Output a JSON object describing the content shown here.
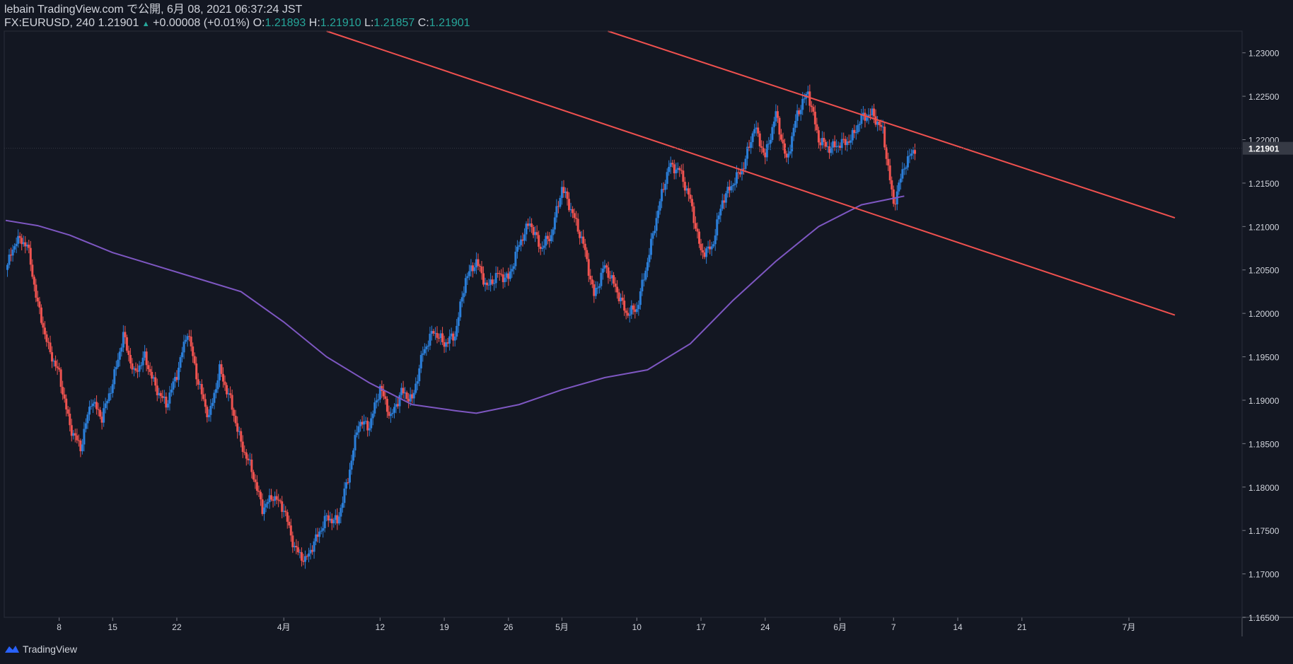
{
  "header": {
    "line1": "lebain TradingView.com で公開, 6月 08, 2021 06:37:24 JST",
    "symbol": "FX:EURUSD, 240",
    "last": "1.21901",
    "change": "+0.00008 (+0.01%)",
    "o_label": "O:",
    "o_val": "1.21893",
    "h_label": "H:",
    "h_val": "1.21910",
    "l_label": "L:",
    "l_val": "1.21857",
    "c_label": "C:",
    "c_val": "1.21901"
  },
  "footer": {
    "brand": "TradingView",
    "logo_icon": "tradingview-logo-icon"
  },
  "colors": {
    "background": "#131722",
    "up": "#2b7ed8",
    "down": "#ef5350",
    "ma": "#7e57c2",
    "channel": "#f0514f",
    "axis_text": "#d1d4dc",
    "last_price_bg": "#363a45"
  },
  "chart_data": {
    "type": "candlestick",
    "symbol": "FX:EURUSD",
    "timeframe": "240",
    "ylim": [
      1.165,
      1.2325
    ],
    "y_ticks": [
      "1.23000",
      "1.22500",
      "1.22000",
      "1.21500",
      "1.21000",
      "1.20500",
      "1.20000",
      "1.19500",
      "1.19000",
      "1.18500",
      "1.18000",
      "1.17500",
      "1.17000",
      "1.16500"
    ],
    "last_price": "1.21901",
    "x_ticks": [
      "8",
      "15",
      "22",
      "4月",
      "12",
      "19",
      "26",
      "5月",
      "10",
      "17",
      "24",
      "6月",
      "7",
      "14",
      "21",
      "7月"
    ],
    "close_path": [
      {
        "d": 0,
        "v": 1.205
      },
      {
        "d": 1,
        "v": 1.2085
      },
      {
        "d": 2,
        "v": 1.208
      },
      {
        "d": 3,
        "v": 1.201
      },
      {
        "d": 4,
        "v": 1.196
      },
      {
        "d": 5,
        "v": 1.193
      },
      {
        "d": 6,
        "v": 1.187
      },
      {
        "d": 7,
        "v": 1.1845
      },
      {
        "d": 8,
        "v": 1.19
      },
      {
        "d": 9,
        "v": 1.188
      },
      {
        "d": 10,
        "v": 1.192
      },
      {
        "d": 11,
        "v": 1.1975
      },
      {
        "d": 12,
        "v": 1.193
      },
      {
        "d": 13,
        "v": 1.195
      },
      {
        "d": 14,
        "v": 1.1915
      },
      {
        "d": 15,
        "v": 1.1895
      },
      {
        "d": 16,
        "v": 1.193
      },
      {
        "d": 17,
        "v": 1.198
      },
      {
        "d": 18,
        "v": 1.192
      },
      {
        "d": 19,
        "v": 1.188
      },
      {
        "d": 20,
        "v": 1.1935
      },
      {
        "d": 21,
        "v": 1.19
      },
      {
        "d": 22,
        "v": 1.185
      },
      {
        "d": 23,
        "v": 1.182
      },
      {
        "d": 24,
        "v": 1.1775
      },
      {
        "d": 25,
        "v": 1.179
      },
      {
        "d": 26,
        "v": 1.1775
      },
      {
        "d": 27,
        "v": 1.173
      },
      {
        "d": 28,
        "v": 1.1715
      },
      {
        "d": 29,
        "v": 1.174
      },
      {
        "d": 30,
        "v": 1.1765
      },
      {
        "d": 31,
        "v": 1.176
      },
      {
        "d": 32,
        "v": 1.181
      },
      {
        "d": 33,
        "v": 1.1875
      },
      {
        "d": 34,
        "v": 1.187
      },
      {
        "d": 35,
        "v": 1.1915
      },
      {
        "d": 36,
        "v": 1.188
      },
      {
        "d": 37,
        "v": 1.191
      },
      {
        "d": 38,
        "v": 1.19
      },
      {
        "d": 39,
        "v": 1.1955
      },
      {
        "d": 40,
        "v": 1.198
      },
      {
        "d": 41,
        "v": 1.1965
      },
      {
        "d": 42,
        "v": 1.1975
      },
      {
        "d": 43,
        "v": 1.204
      },
      {
        "d": 44,
        "v": 1.206
      },
      {
        "d": 45,
        "v": 1.203
      },
      {
        "d": 46,
        "v": 1.2045
      },
      {
        "d": 47,
        "v": 1.204
      },
      {
        "d": 48,
        "v": 1.208
      },
      {
        "d": 49,
        "v": 1.2105
      },
      {
        "d": 50,
        "v": 1.2075
      },
      {
        "d": 51,
        "v": 1.209
      },
      {
        "d": 52,
        "v": 1.2145
      },
      {
        "d": 53,
        "v": 1.2115
      },
      {
        "d": 54,
        "v": 1.208
      },
      {
        "d": 55,
        "v": 1.202
      },
      {
        "d": 56,
        "v": 1.2055
      },
      {
        "d": 57,
        "v": 1.203
      },
      {
        "d": 58,
        "v": 1.2
      },
      {
        "d": 59,
        "v": 1.2005
      },
      {
        "d": 60,
        "v": 1.206
      },
      {
        "d": 61,
        "v": 1.212
      },
      {
        "d": 62,
        "v": 1.217
      },
      {
        "d": 63,
        "v": 1.2165
      },
      {
        "d": 64,
        "v": 1.213
      },
      {
        "d": 65,
        "v": 1.207
      },
      {
        "d": 66,
        "v": 1.2075
      },
      {
        "d": 67,
        "v": 1.213
      },
      {
        "d": 68,
        "v": 1.215
      },
      {
        "d": 69,
        "v": 1.217
      },
      {
        "d": 70,
        "v": 1.2215
      },
      {
        "d": 71,
        "v": 1.218
      },
      {
        "d": 72,
        "v": 1.223
      },
      {
        "d": 73,
        "v": 1.2175
      },
      {
        "d": 74,
        "v": 1.223
      },
      {
        "d": 75,
        "v": 1.2255
      },
      {
        "d": 76,
        "v": 1.22
      },
      {
        "d": 77,
        "v": 1.219
      },
      {
        "d": 78,
        "v": 1.2195
      },
      {
        "d": 79,
        "v": 1.22
      },
      {
        "d": 80,
        "v": 1.2225
      },
      {
        "d": 81,
        "v": 1.223
      },
      {
        "d": 82,
        "v": 1.221
      },
      {
        "d": 83,
        "v": 1.2125
      },
      {
        "d": 84,
        "v": 1.217
      },
      {
        "d": 85,
        "v": 1.219
      }
    ],
    "moving_average": [
      {
        "d": 0,
        "v": 1.2107
      },
      {
        "d": 3,
        "v": 1.2101
      },
      {
        "d": 6,
        "v": 1.209
      },
      {
        "d": 10,
        "v": 1.207
      },
      {
        "d": 14,
        "v": 1.2055
      },
      {
        "d": 18,
        "v": 1.204
      },
      {
        "d": 22,
        "v": 1.2025
      },
      {
        "d": 26,
        "v": 1.199
      },
      {
        "d": 30,
        "v": 1.195
      },
      {
        "d": 34,
        "v": 1.192
      },
      {
        "d": 38,
        "v": 1.1895
      },
      {
        "d": 42,
        "v": 1.1888
      },
      {
        "d": 44,
        "v": 1.1885
      },
      {
        "d": 48,
        "v": 1.1895
      },
      {
        "d": 52,
        "v": 1.1912
      },
      {
        "d": 56,
        "v": 1.1926
      },
      {
        "d": 60,
        "v": 1.1935
      },
      {
        "d": 64,
        "v": 1.1965
      },
      {
        "d": 68,
        "v": 1.2015
      },
      {
        "d": 72,
        "v": 1.206
      },
      {
        "d": 76,
        "v": 1.21
      },
      {
        "d": 80,
        "v": 1.2125
      },
      {
        "d": 84,
        "v": 1.2135
      }
    ],
    "channel_lines": [
      {
        "from": {
          "d": 30.0,
          "v": 1.2325
        },
        "to": {
          "d": 109.3,
          "v": 1.1998
        }
      },
      {
        "from": {
          "d": 56.3,
          "v": 1.2325
        },
        "to": {
          "d": 109.3,
          "v": 1.211
        }
      }
    ],
    "x_tick_day": [
      5,
      10,
      16,
      26,
      35,
      41,
      47,
      52,
      59,
      65,
      71,
      78,
      83,
      89,
      95,
      105
    ]
  }
}
